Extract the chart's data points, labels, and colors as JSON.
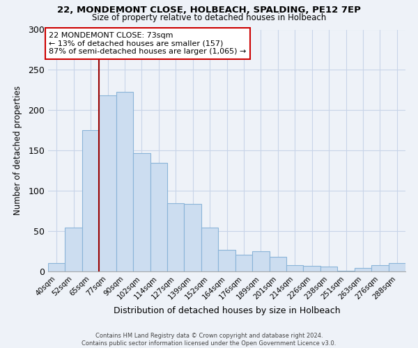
{
  "title1": "22, MONDEMONT CLOSE, HOLBEACH, SPALDING, PE12 7EP",
  "title2": "Size of property relative to detached houses in Holbeach",
  "xlabel": "Distribution of detached houses by size in Holbeach",
  "ylabel": "Number of detached properties",
  "bar_labels": [
    "40sqm",
    "52sqm",
    "65sqm",
    "77sqm",
    "90sqm",
    "102sqm",
    "114sqm",
    "127sqm",
    "139sqm",
    "152sqm",
    "164sqm",
    "176sqm",
    "189sqm",
    "201sqm",
    "214sqm",
    "226sqm",
    "238sqm",
    "251sqm",
    "263sqm",
    "276sqm",
    "288sqm"
  ],
  "bar_values": [
    10,
    54,
    175,
    218,
    223,
    147,
    135,
    85,
    84,
    54,
    27,
    21,
    25,
    18,
    8,
    7,
    6,
    1,
    4,
    8,
    10
  ],
  "bar_color": "#ccddf0",
  "bar_edge_color": "#8ab4d8",
  "vline_x_idx": 3,
  "vline_color": "#990000",
  "annotation_line1": "22 MONDEMONT CLOSE: 73sqm",
  "annotation_line2": "← 13% of detached houses are smaller (157)",
  "annotation_line3": "87% of semi-detached houses are larger (1,065) →",
  "annotation_box_color": "#ffffff",
  "annotation_box_edge": "#cc0000",
  "ylim": [
    0,
    300
  ],
  "yticks": [
    0,
    50,
    100,
    150,
    200,
    250,
    300
  ],
  "footer1": "Contains HM Land Registry data © Crown copyright and database right 2024.",
  "footer2": "Contains public sector information licensed under the Open Government Licence v3.0.",
  "bg_color": "#eef2f8",
  "grid_color": "#c8d4e8",
  "spine_color": "#aaaaaa"
}
